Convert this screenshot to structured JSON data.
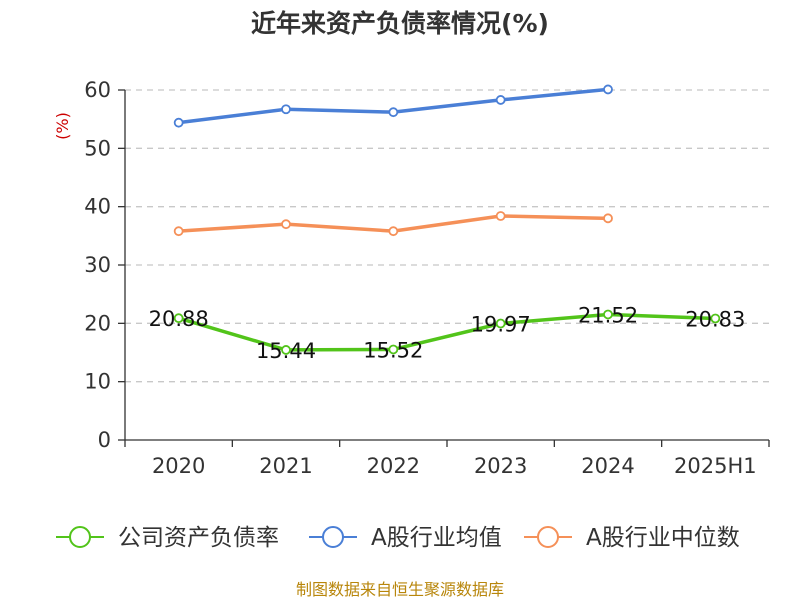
{
  "chart_data": {
    "type": "line",
    "title": "近年来资产负债率情况(%)",
    "ylabel": "(%)",
    "xlabel": "",
    "categories": [
      "2020",
      "2021",
      "2022",
      "2023",
      "2024",
      "2025H1"
    ],
    "ylim": [
      0,
      60
    ],
    "yticks": [
      0,
      10,
      20,
      30,
      40,
      50,
      60
    ],
    "grid": true,
    "legend_position": "bottom",
    "series": [
      {
        "name": "公司资产负债率",
        "color": "#52c41a",
        "values": [
          20.88,
          15.44,
          15.52,
          19.97,
          21.52,
          20.83
        ],
        "labels": [
          "20.88",
          "15.44",
          "15.52",
          "19.97",
          "21.52",
          "20.83"
        ]
      },
      {
        "name": "A股行业均值",
        "color": "#4a7fd6",
        "values": [
          54.4,
          56.7,
          56.2,
          58.3,
          60.1,
          null
        ],
        "labels": []
      },
      {
        "name": "A股行业中位数",
        "color": "#f59058",
        "values": [
          35.8,
          37.0,
          35.8,
          38.4,
          38.0,
          null
        ],
        "labels": []
      }
    ]
  },
  "source": "制图数据来自恒生聚源数据库"
}
